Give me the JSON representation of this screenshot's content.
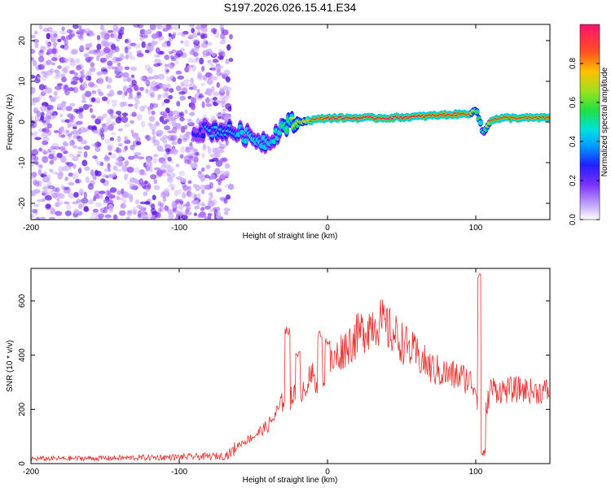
{
  "figure_title": "S197.2026.026.15.41.E34",
  "colors": {
    "snr_line": "#e8302c",
    "axis": "#000000",
    "background": "#ffffff"
  },
  "chart_data": [
    {
      "type": "heatmap",
      "title": "S197.2026.026.15.41.E34",
      "xlabel": "Height of straight line (km)",
      "ylabel": "Frequency (Hz)",
      "xlim": [
        -200,
        150
      ],
      "ylim": [
        -24,
        24
      ],
      "xticks": [
        -200,
        -100,
        0,
        100
      ],
      "yticks": [
        -20,
        -10,
        0,
        10,
        20
      ],
      "x_tick_labels": [
        "-200",
        "-100",
        "0",
        "100"
      ],
      "y_tick_labels": [
        "-20",
        "-10",
        "0",
        "10",
        "20"
      ],
      "colorbar": {
        "label": "Normalized spectral amplitude",
        "range": [
          0,
          1
        ],
        "ticks": [
          0.0,
          0.2,
          0.4,
          0.6,
          0.8
        ],
        "tick_labels": [
          "0.0",
          "0.2",
          "0.4",
          "0.6",
          "0.8"
        ],
        "colormap": [
          "#ffffff",
          "#a040ff",
          "#2020ff",
          "#00c8ff",
          "#00e0a0",
          "#30e030",
          "#c0e020",
          "#ffb000",
          "#ff3020",
          "#ff1060"
        ]
      },
      "noise_region_x": [
        -200,
        -65
      ],
      "ridge": {
        "description_points_x": [
          -90,
          -75,
          -60,
          -50,
          -40,
          -35,
          -30,
          -20,
          -10,
          0,
          20,
          40,
          60,
          80,
          95,
          100,
          103,
          105,
          110,
          120,
          150
        ],
        "frequency_hz": [
          -2,
          -2,
          -2.5,
          -4,
          -5,
          -3,
          -1,
          0,
          0.5,
          1,
          1,
          1,
          1.3,
          1.8,
          2,
          3,
          0,
          -3,
          0.5,
          1,
          1
        ],
        "peak_amplitude": [
          0.25,
          0.3,
          0.35,
          0.4,
          0.35,
          0.4,
          0.5,
          0.7,
          0.85,
          0.95,
          0.98,
          0.97,
          0.95,
          0.92,
          0.9,
          0.6,
          0.5,
          0.4,
          0.85,
          0.9,
          0.9
        ]
      }
    },
    {
      "type": "line",
      "xlabel": "Height of straight line (km)",
      "ylabel": "SNR (10 * v/v)",
      "xlim": [
        -200,
        150
      ],
      "ylim": [
        0,
        720
      ],
      "xticks": [
        -200,
        -100,
        0,
        100
      ],
      "yticks": [
        0,
        200,
        400,
        600
      ],
      "x_tick_labels": [
        "-200",
        "-100",
        "0",
        "100"
      ],
      "y_tick_labels": [
        "0",
        "200",
        "400",
        "600"
      ],
      "series": [
        {
          "name": "SNR",
          "envelope_x": [
            -200,
            -150,
            -100,
            -70,
            -65,
            -60,
            -55,
            -50,
            -45,
            -40,
            -35,
            -30,
            -27,
            -25,
            -20,
            -15,
            -10,
            -5,
            0,
            10,
            20,
            30,
            35,
            40,
            50,
            60,
            70,
            80,
            90,
            95,
            100,
            103,
            105,
            107,
            110,
            115,
            120,
            130,
            140,
            150
          ],
          "envelope_y": [
            18,
            20,
            24,
            28,
            40,
            70,
            85,
            100,
            120,
            140,
            180,
            230,
            300,
            240,
            260,
            290,
            320,
            300,
            350,
            420,
            470,
            520,
            525,
            500,
            450,
            400,
            350,
            330,
            320,
            310,
            280,
            150,
            110,
            200,
            280,
            270,
            270,
            275,
            265,
            270
          ],
          "spikes": [
            {
              "x": -27,
              "y": 490
            },
            {
              "x": -20,
              "y": 400
            },
            {
              "x": -5,
              "y": 480
            },
            {
              "x": 0,
              "y": 450
            },
            {
              "x": 103,
              "y": 700
            },
            {
              "x": 105,
              "y": 40
            }
          ]
        }
      ]
    }
  ]
}
